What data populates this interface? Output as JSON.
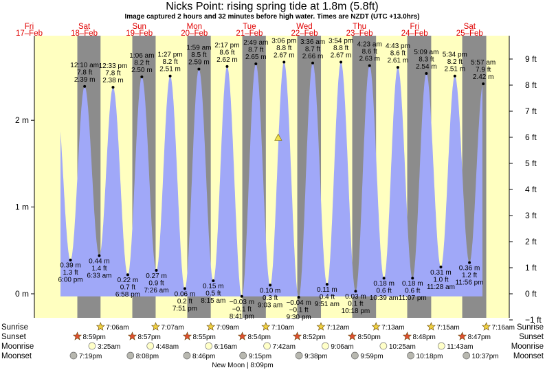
{
  "header": {
    "title": "Nicks Point: rising  spring tide at 1.8m (5.8ft)",
    "subtitle": "Image captured 2 hours and 32 minutes before high water. Times are NZDT (UTC +13.0hrs)"
  },
  "colors": {
    "day_bg": "#ffffc0",
    "night_bg": "#8c8c8c",
    "tide_fill": "#a0a8f8",
    "date_red": "#e00000",
    "star_yellow": "#f0d040",
    "star_red": "#e05030",
    "moon_rise": "#ffffc8",
    "moon_set": "#b8b8b0"
  },
  "chart_data": {
    "type": "area",
    "title": "Nicks Point: rising  spring tide at 1.8m (5.8ft)",
    "x_range_days": [
      16.6,
      25.9
    ],
    "ylim_m": [
      -0.3,
      2.95
    ],
    "left_axis_ticks": [
      {
        "value": 0,
        "label": "0 m"
      },
      {
        "value": 1,
        "label": "1 m"
      },
      {
        "value": 2,
        "label": "2 m"
      }
    ],
    "right_axis_ticks": [
      {
        "value": -1,
        "label": "−1 ft"
      },
      {
        "value": 0,
        "label": "0 ft"
      },
      {
        "value": 1,
        "label": "1 ft"
      },
      {
        "value": 2,
        "label": "2 ft"
      },
      {
        "value": 3,
        "label": "3 ft"
      },
      {
        "value": 4,
        "label": "4 ft"
      },
      {
        "value": 5,
        "label": "5 ft"
      },
      {
        "value": 6,
        "label": "6 ft"
      },
      {
        "value": 7,
        "label": "7 ft"
      },
      {
        "value": 8,
        "label": "8 ft"
      },
      {
        "value": 9,
        "label": "9 ft"
      }
    ],
    "days": [
      {
        "day": 17,
        "dow": "Fri",
        "date": "17–Feb"
      },
      {
        "day": 18,
        "dow": "Sat",
        "date": "18–Feb"
      },
      {
        "day": 19,
        "dow": "Sun",
        "date": "19–Feb"
      },
      {
        "day": 20,
        "dow": "Mon",
        "date": "20–Feb"
      },
      {
        "day": 21,
        "dow": "Tue",
        "date": "21–Feb"
      },
      {
        "day": 22,
        "dow": "Wed",
        "date": "22–Feb"
      },
      {
        "day": 23,
        "dow": "Thu",
        "date": "23–Feb"
      },
      {
        "day": 24,
        "dow": "Fri",
        "date": "24–Feb"
      },
      {
        "day": 25,
        "dow": "Sat",
        "date": "25–Feb"
      }
    ],
    "extremes": [
      {
        "day": 17,
        "hour": 18.0,
        "height_m": 0.39,
        "kind": "low",
        "time": "6:00 pm",
        "m": "0.39 m",
        "ft": "1.3 ft"
      },
      {
        "day": 18,
        "hour": 0.1667,
        "height_m": 2.39,
        "kind": "high",
        "time": "12:10 am",
        "m": "2.39 m",
        "ft": "7.8 ft"
      },
      {
        "day": 18,
        "hour": 6.55,
        "height_m": 0.44,
        "kind": "low",
        "time": "6:33 am",
        "m": "0.44 m",
        "ft": "1.4 ft"
      },
      {
        "day": 18,
        "hour": 12.55,
        "height_m": 2.38,
        "kind": "high",
        "time": "12:33 pm",
        "m": "2.38 m",
        "ft": "7.8 ft"
      },
      {
        "day": 18,
        "hour": 18.9667,
        "height_m": 0.22,
        "kind": "low",
        "time": "6:58 pm",
        "m": "0.22 m",
        "ft": "0.7 ft"
      },
      {
        "day": 19,
        "hour": 1.1,
        "height_m": 2.5,
        "kind": "high",
        "time": "1:06 am",
        "m": "2.50 m",
        "ft": "8.2 ft"
      },
      {
        "day": 19,
        "hour": 7.4333,
        "height_m": 0.27,
        "kind": "low",
        "time": "7:26 am",
        "m": "0.27 m",
        "ft": "0.9 ft"
      },
      {
        "day": 19,
        "hour": 13.45,
        "height_m": 2.51,
        "kind": "high",
        "time": "1:27 pm",
        "m": "2.51 m",
        "ft": "8.2 ft"
      },
      {
        "day": 19,
        "hour": 19.85,
        "height_m": 0.06,
        "kind": "low",
        "time": "7:51 pm",
        "m": "0.06 m",
        "ft": "0.2 ft"
      },
      {
        "day": 20,
        "hour": 1.9833,
        "height_m": 2.59,
        "kind": "high",
        "time": "1:59 am",
        "m": "2.59 m",
        "ft": "8.5 ft"
      },
      {
        "day": 20,
        "hour": 8.25,
        "height_m": 0.15,
        "kind": "low",
        "time": "8:15 am",
        "m": "0.15 m",
        "ft": "0.5 ft"
      },
      {
        "day": 20,
        "hour": 14.2833,
        "height_m": 2.62,
        "kind": "high",
        "time": "2:17 pm",
        "m": "2.62 m",
        "ft": "8.6 ft"
      },
      {
        "day": 20,
        "hour": 20.6833,
        "height_m": -0.03,
        "kind": "low",
        "time": "8:41 pm",
        "m": "−0.03 m",
        "ft": "−0.1 ft"
      },
      {
        "day": 21,
        "hour": 2.8167,
        "height_m": 2.65,
        "kind": "high",
        "time": "2:49 am",
        "m": "2.65 m",
        "ft": "8.7 ft"
      },
      {
        "day": 21,
        "hour": 9.05,
        "height_m": 0.1,
        "kind": "low",
        "time": "9:03 am",
        "m": "0.10 m",
        "ft": "0.3 ft"
      },
      {
        "day": 21,
        "hour": 15.1,
        "height_m": 2.67,
        "kind": "high",
        "time": "3:06 pm",
        "m": "2.67 m",
        "ft": "8.8 ft"
      },
      {
        "day": 21,
        "hour": 21.5,
        "height_m": -0.04,
        "kind": "low",
        "time": "9:30 pm",
        "m": "−0.04 m",
        "ft": "−0.1 ft"
      },
      {
        "day": 22,
        "hour": 3.6,
        "height_m": 2.66,
        "kind": "high",
        "time": "3:36 am",
        "m": "2.66 m",
        "ft": "8.7 ft"
      },
      {
        "day": 22,
        "hour": 9.85,
        "height_m": 0.11,
        "kind": "low",
        "time": "9:51 am",
        "m": "0.11 m",
        "ft": "0.4 ft"
      },
      {
        "day": 22,
        "hour": 15.9,
        "height_m": 2.67,
        "kind": "high",
        "time": "3:54 pm",
        "m": "2.67 m",
        "ft": "8.8 ft"
      },
      {
        "day": 22,
        "hour": 22.3,
        "height_m": 0.03,
        "kind": "low",
        "time": "10:18 pm",
        "m": "0.03 m",
        "ft": "0.1 ft"
      },
      {
        "day": 23,
        "hour": 4.3833,
        "height_m": 2.63,
        "kind": "high",
        "time": "4:23 am",
        "m": "2.63 m",
        "ft": "8.6 ft"
      },
      {
        "day": 23,
        "hour": 10.65,
        "height_m": 0.18,
        "kind": "low",
        "time": "10:39 am",
        "m": "0.18 m",
        "ft": "0.6 ft"
      },
      {
        "day": 23,
        "hour": 16.7167,
        "height_m": 2.61,
        "kind": "high",
        "time": "4:43 pm",
        "m": "2.61 m",
        "ft": "8.6 ft"
      },
      {
        "day": 23,
        "hour": 23.1167,
        "height_m": 0.18,
        "kind": "low",
        "time": "11:07 pm",
        "m": "0.18 m",
        "ft": "0.6 ft"
      },
      {
        "day": 24,
        "hour": 5.15,
        "height_m": 2.54,
        "kind": "high",
        "time": "5:09 am",
        "m": "2.54 m",
        "ft": "8.3 ft"
      },
      {
        "day": 24,
        "hour": 11.4667,
        "height_m": 0.31,
        "kind": "low",
        "time": "11:28 am",
        "m": "0.31 m",
        "ft": "1.0 ft"
      },
      {
        "day": 24,
        "hour": 17.5667,
        "height_m": 2.51,
        "kind": "high",
        "time": "5:34 pm",
        "m": "2.51 m",
        "ft": "8.2 ft"
      },
      {
        "day": 24,
        "hour": 23.9333,
        "height_m": 0.36,
        "kind": "low",
        "time": "11:56 pm",
        "m": "0.36 m",
        "ft": "1.2 ft"
      },
      {
        "day": 25,
        "hour": 5.95,
        "height_m": 2.42,
        "kind": "high",
        "time": "5:57 am",
        "m": "2.42 m",
        "ft": "7.9 ft"
      }
    ],
    "current": {
      "day": 21,
      "hour": 12.5667,
      "height_m": 1.8
    },
    "sunrise": [
      {
        "day": 18,
        "hour": 7.1,
        "label": "7:06am"
      },
      {
        "day": 19,
        "hour": 7.1167,
        "label": "7:07am"
      },
      {
        "day": 20,
        "hour": 7.15,
        "label": "7:09am"
      },
      {
        "day": 21,
        "hour": 7.1667,
        "label": "7:10am"
      },
      {
        "day": 22,
        "hour": 7.2,
        "label": "7:12am"
      },
      {
        "day": 23,
        "hour": 7.2167,
        "label": "7:13am"
      },
      {
        "day": 24,
        "hour": 7.25,
        "label": "7:15am"
      },
      {
        "day": 25,
        "hour": 7.2667,
        "label": "7:16am"
      }
    ],
    "sunset": [
      {
        "day": 17,
        "hour": 20.9833,
        "label": "8:59pm"
      },
      {
        "day": 18,
        "hour": 20.95,
        "label": "8:57pm"
      },
      {
        "day": 19,
        "hour": 20.9167,
        "label": "8:55pm"
      },
      {
        "day": 20,
        "hour": 20.9,
        "label": "8:54pm"
      },
      {
        "day": 21,
        "hour": 20.8667,
        "label": "8:52pm"
      },
      {
        "day": 22,
        "hour": 20.8333,
        "label": "8:50pm"
      },
      {
        "day": 23,
        "hour": 20.8,
        "label": "8:48pm"
      },
      {
        "day": 24,
        "hour": 20.7833,
        "label": "8:47pm"
      }
    ],
    "moonrise": [
      {
        "day": 18,
        "hour": 3.4167,
        "label": "3:25am"
      },
      {
        "day": 19,
        "hour": 4.8,
        "label": "4:48am"
      },
      {
        "day": 20,
        "hour": 6.2667,
        "label": "6:16am"
      },
      {
        "day": 21,
        "hour": 7.7,
        "label": "7:42am"
      },
      {
        "day": 22,
        "hour": 9.1,
        "label": "9:06am"
      },
      {
        "day": 23,
        "hour": 10.4167,
        "label": "10:25am"
      },
      {
        "day": 24,
        "hour": 11.7167,
        "label": "11:43am"
      }
    ],
    "moonset": [
      {
        "day": 17,
        "hour": 19.3167,
        "label": "7:19pm"
      },
      {
        "day": 18,
        "hour": 20.1333,
        "label": "8:08pm"
      },
      {
        "day": 19,
        "hour": 20.7667,
        "label": "8:46pm"
      },
      {
        "day": 20,
        "hour": 21.25,
        "label": "9:15pm"
      },
      {
        "day": 21,
        "hour": 21.6333,
        "label": "9:38pm"
      },
      {
        "day": 22,
        "hour": 21.9833,
        "label": "9:59pm"
      },
      {
        "day": 23,
        "hour": 22.3,
        "label": "10:18pm"
      },
      {
        "day": 24,
        "hour": 22.6167,
        "label": "10:37pm"
      }
    ],
    "new_moon": {
      "day": 20,
      "hour": 20.15,
      "label": "New Moon | 8:09pm"
    }
  },
  "rows": {
    "sunrise": "Sunrise",
    "sunset": "Sunset",
    "moonrise": "Moonrise",
    "moonset": "Moonset"
  }
}
